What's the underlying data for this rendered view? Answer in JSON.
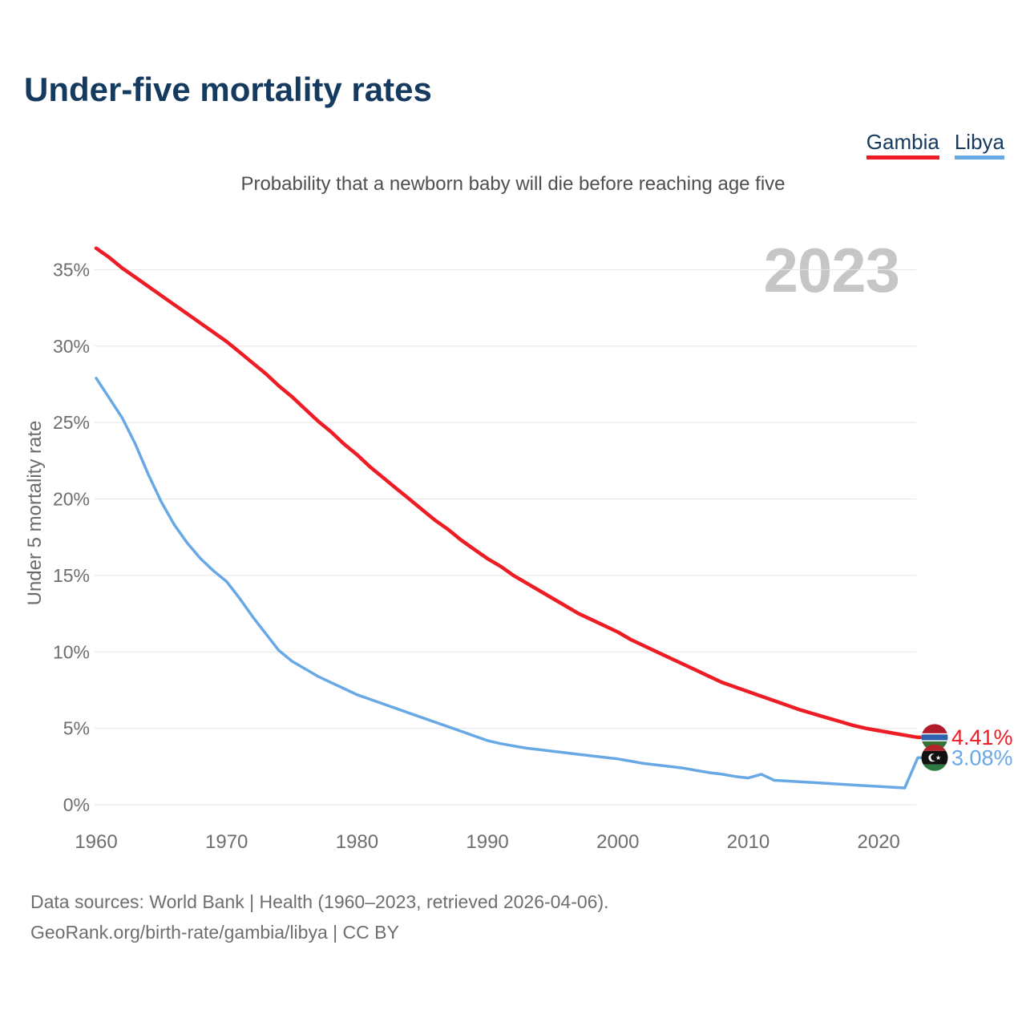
{
  "title": "Under-five mortality rates",
  "subtitle": "Probability that a newborn baby will die before reaching age five",
  "watermark": "2023",
  "colors": {
    "gambia_red": "#ee1c24",
    "libya_blue": "#68a9e5",
    "navy_text": "#143a5f",
    "gridline": "#e5e5e5",
    "tick_text": "#6e6e6e",
    "watermark_gray": "#c6c6c6"
  },
  "legend": [
    {
      "label": "Gambia",
      "color": "#ee1c24"
    },
    {
      "label": "Libya",
      "color": "#68a9e5"
    }
  ],
  "footer": {
    "line1": "Data sources: World Bank | Health (1960–2023, retrieved 2026-04-06).",
    "line2": "GeoRank.org/birth-rate/gambia/libya | CC BY"
  },
  "chart_data": {
    "type": "line",
    "title": "Under-five mortality rates",
    "subtitle": "Probability that a newborn baby will die before reaching age five",
    "xlabel": "",
    "ylabel": "Under 5 mortality rate",
    "xlim": [
      1960,
      2023
    ],
    "ylim": [
      0,
      37.5
    ],
    "grid": "horizontal",
    "legend_position": "top-right",
    "x_ticks": [
      1960,
      1970,
      1980,
      1990,
      2000,
      2010,
      2020
    ],
    "y_ticks": [
      {
        "value": 0,
        "label": "0%"
      },
      {
        "value": 5,
        "label": "5%"
      },
      {
        "value": 10,
        "label": "10%"
      },
      {
        "value": 15,
        "label": "15%"
      },
      {
        "value": 20,
        "label": "20%"
      },
      {
        "value": 25,
        "label": "25%"
      },
      {
        "value": 30,
        "label": "30%"
      },
      {
        "value": 35,
        "label": "35%"
      }
    ],
    "years": [
      1960,
      1961,
      1962,
      1963,
      1964,
      1965,
      1966,
      1967,
      1968,
      1969,
      1970,
      1971,
      1972,
      1973,
      1974,
      1975,
      1976,
      1977,
      1978,
      1979,
      1980,
      1981,
      1982,
      1983,
      1984,
      1985,
      1986,
      1987,
      1988,
      1989,
      1990,
      1991,
      1992,
      1993,
      1994,
      1995,
      1996,
      1997,
      1998,
      1999,
      2000,
      2001,
      2002,
      2003,
      2004,
      2005,
      2006,
      2007,
      2008,
      2009,
      2010,
      2011,
      2012,
      2013,
      2014,
      2015,
      2016,
      2017,
      2018,
      2019,
      2020,
      2021,
      2022,
      2023
    ],
    "series": [
      {
        "name": "Gambia",
        "color": "#ee1c24",
        "end_label": "4.41%",
        "end_value": 4.41,
        "flag": "gambia",
        "values": [
          36.4,
          35.8,
          35.1,
          34.5,
          33.9,
          33.3,
          32.7,
          32.1,
          31.5,
          30.9,
          30.3,
          29.6,
          28.9,
          28.2,
          27.4,
          26.7,
          25.9,
          25.1,
          24.4,
          23.6,
          22.9,
          22.1,
          21.4,
          20.7,
          20.0,
          19.3,
          18.6,
          18.0,
          17.3,
          16.7,
          16.1,
          15.6,
          15.0,
          14.5,
          14.0,
          13.5,
          13.0,
          12.5,
          12.1,
          11.7,
          11.3,
          10.8,
          10.4,
          10.0,
          9.6,
          9.2,
          8.8,
          8.4,
          8.0,
          7.7,
          7.4,
          7.1,
          6.8,
          6.5,
          6.2,
          5.95,
          5.7,
          5.45,
          5.2,
          5.0,
          4.85,
          4.7,
          4.55,
          4.41
        ]
      },
      {
        "name": "Libya",
        "color": "#68a9e5",
        "end_label": "3.08%",
        "end_value": 3.08,
        "flag": "libya",
        "values": [
          27.9,
          26.6,
          25.3,
          23.6,
          21.6,
          19.8,
          18.3,
          17.1,
          16.1,
          15.3,
          14.6,
          13.5,
          12.3,
          11.2,
          10.1,
          9.4,
          8.9,
          8.4,
          8.0,
          7.6,
          7.2,
          6.9,
          6.6,
          6.3,
          6.0,
          5.7,
          5.4,
          5.1,
          4.8,
          4.5,
          4.2,
          4.0,
          3.85,
          3.7,
          3.6,
          3.5,
          3.4,
          3.3,
          3.2,
          3.1,
          3.0,
          2.85,
          2.7,
          2.6,
          2.5,
          2.4,
          2.25,
          2.1,
          2.0,
          1.85,
          1.75,
          2.0,
          1.6,
          1.55,
          1.5,
          1.45,
          1.4,
          1.35,
          1.3,
          1.25,
          1.2,
          1.15,
          1.1,
          3.08
        ]
      }
    ]
  }
}
